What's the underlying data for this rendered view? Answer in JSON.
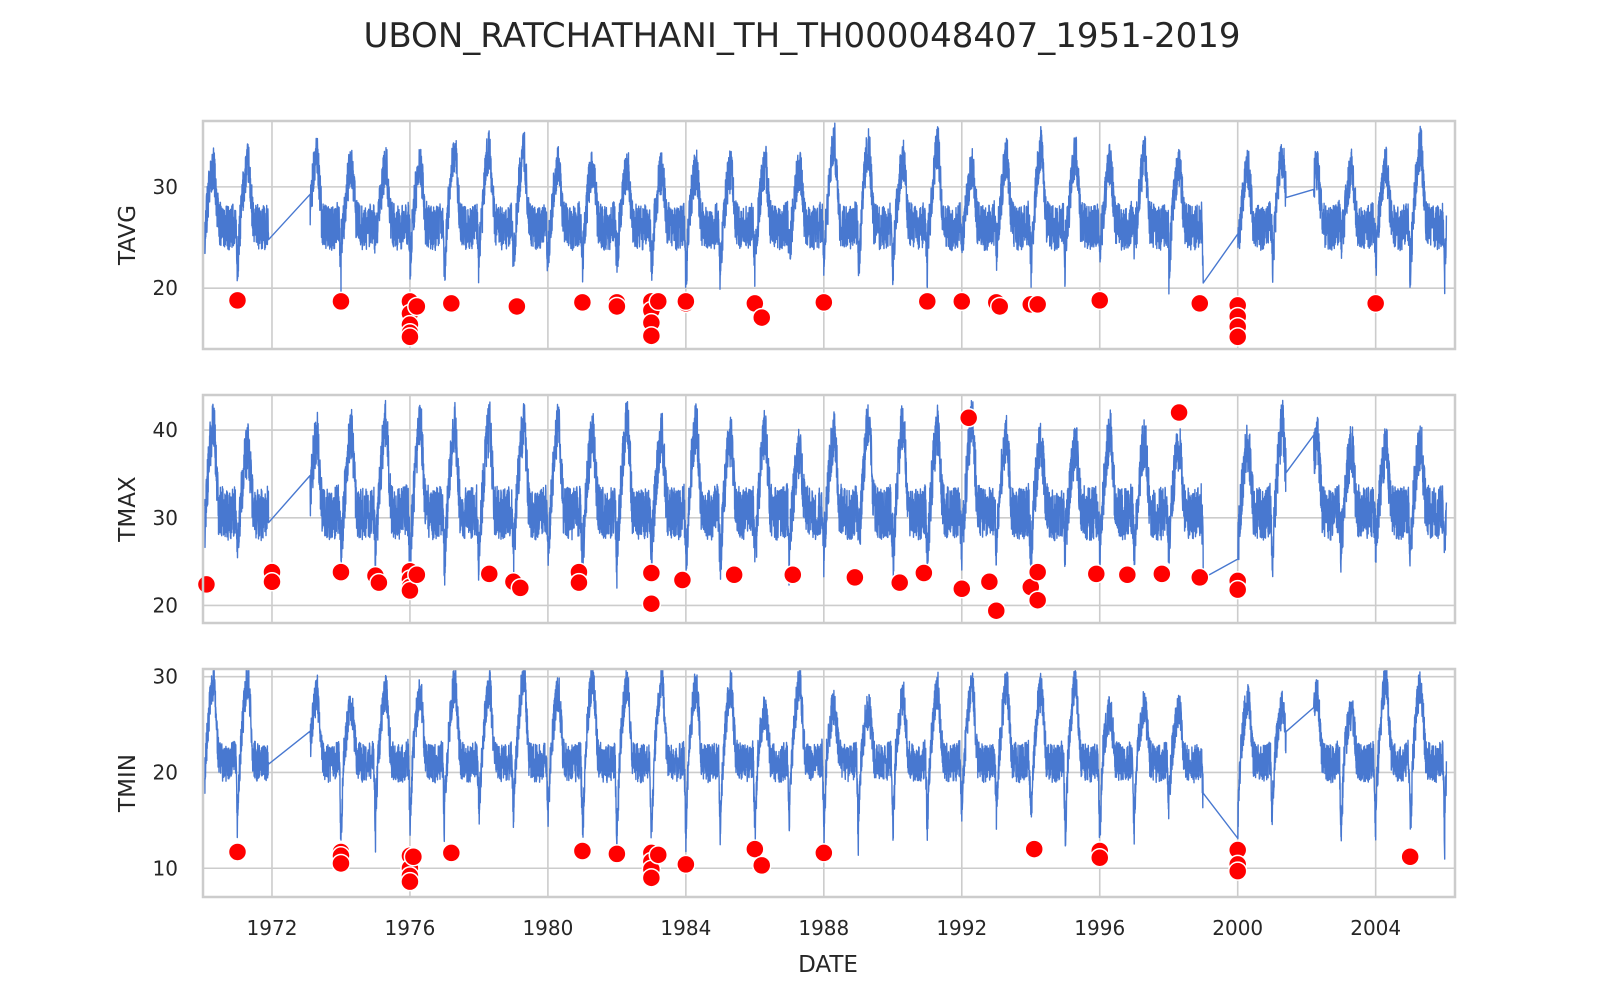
{
  "chart_data": {
    "type": "line",
    "title": "UBON_RATCHATHANI_TH_TH000048407_1951-2019",
    "xlabel": "DATE",
    "x_range": [
      1970.0,
      2006.3
    ],
    "x_ticks": [
      "1972",
      "1976",
      "1980",
      "1984",
      "1988",
      "1992",
      "1996",
      "2000",
      "2004"
    ],
    "x_tick_values": [
      1972,
      1976,
      1980,
      1984,
      1988,
      1992,
      1996,
      2000,
      2004
    ],
    "grid": true,
    "colors": {
      "series": "#4878d0",
      "anomaly": "#ff0000",
      "grid": "#cccccc"
    },
    "gaps": [
      [
        1971.9,
        1973.1
      ],
      [
        1999.0,
        2000.0
      ],
      [
        2001.4,
        2002.2
      ]
    ],
    "panels": [
      {
        "ylabel": "TAVG",
        "ylim": [
          14.0,
          36.5
        ],
        "y_ticks": [
          "20",
          "30"
        ],
        "y_tick_values": [
          20,
          30
        ],
        "series": {
          "base": 26.5,
          "amp": 3.5,
          "noise": 2.2,
          "seasonal_min": [
            20.5,
            25.5
          ],
          "seasonal_max": [
            31.5,
            34.5
          ]
        },
        "anomalies": [
          {
            "x": 1971.0,
            "y": 18.8
          },
          {
            "x": 1974.0,
            "y": 18.7
          },
          {
            "x": 1976.0,
            "y": 18.7
          },
          {
            "x": 1976.0,
            "y": 17.5
          },
          {
            "x": 1976.0,
            "y": 16.4
          },
          {
            "x": 1976.0,
            "y": 15.6
          },
          {
            "x": 1976.0,
            "y": 15.2
          },
          {
            "x": 1976.2,
            "y": 18.2
          },
          {
            "x": 1977.2,
            "y": 18.5
          },
          {
            "x": 1979.1,
            "y": 18.2
          },
          {
            "x": 1981.0,
            "y": 18.6
          },
          {
            "x": 1982.0,
            "y": 18.6
          },
          {
            "x": 1982.0,
            "y": 18.2
          },
          {
            "x": 1983.0,
            "y": 18.7
          },
          {
            "x": 1983.0,
            "y": 17.8
          },
          {
            "x": 1983.0,
            "y": 16.6
          },
          {
            "x": 1983.0,
            "y": 15.3
          },
          {
            "x": 1983.2,
            "y": 18.7
          },
          {
            "x": 1984.0,
            "y": 18.5
          },
          {
            "x": 1984.0,
            "y": 18.7
          },
          {
            "x": 1986.0,
            "y": 18.5
          },
          {
            "x": 1986.2,
            "y": 17.1
          },
          {
            "x": 1988.0,
            "y": 18.6
          },
          {
            "x": 1991.0,
            "y": 18.7
          },
          {
            "x": 1992.0,
            "y": 18.7
          },
          {
            "x": 1993.0,
            "y": 18.6
          },
          {
            "x": 1993.1,
            "y": 18.2
          },
          {
            "x": 1994.0,
            "y": 18.4
          },
          {
            "x": 1994.2,
            "y": 18.4
          },
          {
            "x": 1996.0,
            "y": 18.8
          },
          {
            "x": 1998.9,
            "y": 18.5
          },
          {
            "x": 2000.0,
            "y": 18.3
          },
          {
            "x": 2000.0,
            "y": 17.2
          },
          {
            "x": 2000.0,
            "y": 16.2
          },
          {
            "x": 2000.0,
            "y": 15.2
          },
          {
            "x": 2004.0,
            "y": 18.5
          }
        ]
      },
      {
        "ylabel": "TMAX",
        "ylim": [
          18.0,
          44.0
        ],
        "y_ticks": [
          "20",
          "30",
          "40"
        ],
        "y_tick_values": [
          20,
          30,
          40
        ],
        "series": {
          "base": 31.0,
          "amp": 4.0,
          "noise": 3.0,
          "seasonal_min": [
            24.0,
            27.5
          ],
          "seasonal_max": [
            37.5,
            41.0
          ]
        },
        "anomalies": [
          {
            "x": 1970.1,
            "y": 22.4
          },
          {
            "x": 1972.0,
            "y": 23.8
          },
          {
            "x": 1972.0,
            "y": 22.7
          },
          {
            "x": 1974.0,
            "y": 23.8
          },
          {
            "x": 1975.0,
            "y": 23.4
          },
          {
            "x": 1975.1,
            "y": 22.6
          },
          {
            "x": 1976.0,
            "y": 23.9
          },
          {
            "x": 1976.0,
            "y": 23.0
          },
          {
            "x": 1976.0,
            "y": 22.1
          },
          {
            "x": 1976.0,
            "y": 21.7
          },
          {
            "x": 1976.2,
            "y": 23.5
          },
          {
            "x": 1978.3,
            "y": 23.6
          },
          {
            "x": 1979.0,
            "y": 22.7
          },
          {
            "x": 1979.2,
            "y": 22.0
          },
          {
            "x": 1980.9,
            "y": 23.8
          },
          {
            "x": 1980.9,
            "y": 22.6
          },
          {
            "x": 1983.0,
            "y": 23.7
          },
          {
            "x": 1983.0,
            "y": 20.2
          },
          {
            "x": 1983.9,
            "y": 22.9
          },
          {
            "x": 1985.4,
            "y": 23.5
          },
          {
            "x": 1987.1,
            "y": 23.5
          },
          {
            "x": 1988.9,
            "y": 23.2
          },
          {
            "x": 1990.2,
            "y": 22.6
          },
          {
            "x": 1990.9,
            "y": 23.7
          },
          {
            "x": 1992.0,
            "y": 21.9
          },
          {
            "x": 1992.2,
            "y": 41.4
          },
          {
            "x": 1992.8,
            "y": 22.7
          },
          {
            "x": 1993.0,
            "y": 19.4
          },
          {
            "x": 1994.0,
            "y": 22.1
          },
          {
            "x": 1994.2,
            "y": 23.8
          },
          {
            "x": 1994.2,
            "y": 20.6
          },
          {
            "x": 1995.9,
            "y": 23.6
          },
          {
            "x": 1996.8,
            "y": 23.5
          },
          {
            "x": 1997.8,
            "y": 23.6
          },
          {
            "x": 1998.3,
            "y": 42.0
          },
          {
            "x": 1998.9,
            "y": 23.2
          },
          {
            "x": 2000.0,
            "y": 22.8
          },
          {
            "x": 2000.0,
            "y": 21.8
          }
        ]
      },
      {
        "ylabel": "TMIN",
        "ylim": [
          7.0,
          30.8
        ],
        "y_ticks": [
          "10",
          "20",
          "30"
        ],
        "y_tick_values": [
          10,
          20,
          30
        ],
        "series": {
          "base": 21.5,
          "amp": 4.0,
          "noise": 2.0,
          "seasonal_min": [
            12.5,
            17.5
          ],
          "seasonal_max": [
            26.0,
            30.0
          ]
        },
        "anomalies": [
          {
            "x": 1971.0,
            "y": 11.7
          },
          {
            "x": 1974.0,
            "y": 11.7
          },
          {
            "x": 1974.0,
            "y": 11.3
          },
          {
            "x": 1974.0,
            "y": 10.5
          },
          {
            "x": 1976.0,
            "y": 11.3
          },
          {
            "x": 1976.0,
            "y": 10.0
          },
          {
            "x": 1976.0,
            "y": 9.2
          },
          {
            "x": 1976.0,
            "y": 8.6
          },
          {
            "x": 1976.1,
            "y": 11.2
          },
          {
            "x": 1977.2,
            "y": 11.6
          },
          {
            "x": 1981.0,
            "y": 11.8
          },
          {
            "x": 1982.0,
            "y": 11.5
          },
          {
            "x": 1983.0,
            "y": 11.6
          },
          {
            "x": 1983.0,
            "y": 10.7
          },
          {
            "x": 1983.0,
            "y": 9.9
          },
          {
            "x": 1983.0,
            "y": 9.0
          },
          {
            "x": 1983.2,
            "y": 11.4
          },
          {
            "x": 1984.0,
            "y": 10.4
          },
          {
            "x": 1986.0,
            "y": 12.0
          },
          {
            "x": 1986.2,
            "y": 10.3
          },
          {
            "x": 1988.0,
            "y": 11.6
          },
          {
            "x": 1994.1,
            "y": 12.0
          },
          {
            "x": 1996.0,
            "y": 11.8
          },
          {
            "x": 1996.0,
            "y": 11.1
          },
          {
            "x": 2000.0,
            "y": 11.9
          },
          {
            "x": 2000.0,
            "y": 10.4
          },
          {
            "x": 2000.0,
            "y": 9.7
          },
          {
            "x": 2005.0,
            "y": 11.2
          }
        ]
      }
    ]
  }
}
